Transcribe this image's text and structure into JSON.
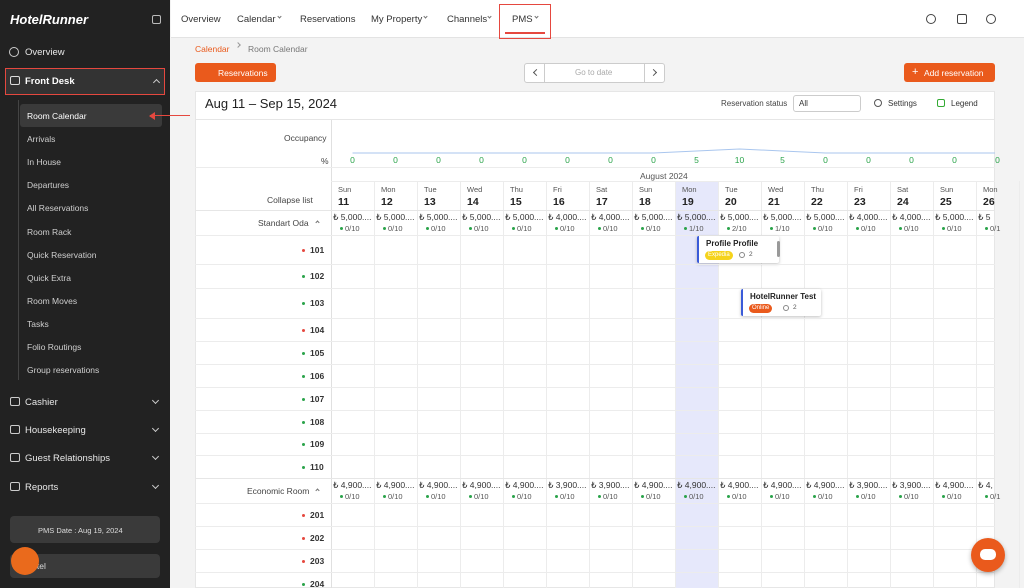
{
  "sidebar": {
    "logo": "HotelRunner",
    "overview": "Overview",
    "front_desk": "Front Desk",
    "front_desk_items": [
      "Room Calendar",
      "Arrivals",
      "In House",
      "Departures",
      "All Reservations",
      "Room Rack",
      "Quick Reservation",
      "Quick Extra",
      "Room Moves",
      "Tasks",
      "Folio Routings",
      "Group reservations"
    ],
    "sections": [
      "Cashier",
      "Housekeeping",
      "Guest Relationships",
      "Reports"
    ],
    "pms_date": "PMS Date : Aug 19, 2024",
    "hotel": "Hotel"
  },
  "topnav": [
    "Overview",
    "Calendar",
    "Reservations",
    "My Property",
    "Channels",
    "PMS"
  ],
  "breadcrumb": [
    "Calendar",
    "Room Calendar"
  ],
  "toolbar": {
    "reservations": "Reservations",
    "go_to_date": "Go to date",
    "add_reservation": "Add reservation"
  },
  "calendar": {
    "range": "Aug 11 – Sep 15, 2024",
    "status_label": "Reservation status",
    "status_value": "All",
    "settings": "Settings",
    "legend": "Legend",
    "occupancy_label": "Occupancy",
    "percent_label": "%",
    "occupancy": [
      0,
      0,
      0,
      0,
      0,
      0,
      0,
      0,
      5,
      10,
      5,
      0,
      0,
      0,
      0,
      0
    ],
    "month": "August 2024",
    "collapse": "Collapse list",
    "days": [
      {
        "dow": "Sun",
        "day": 11
      },
      {
        "dow": "Mon",
        "day": 12
      },
      {
        "dow": "Tue",
        "day": 13
      },
      {
        "dow": "Wed",
        "day": 14
      },
      {
        "dow": "Thu",
        "day": 15
      },
      {
        "dow": "Fri",
        "day": 16
      },
      {
        "dow": "Sat",
        "day": 17
      },
      {
        "dow": "Sun",
        "day": 18
      },
      {
        "dow": "Mon",
        "day": 19
      },
      {
        "dow": "Tue",
        "day": 20
      },
      {
        "dow": "Wed",
        "day": 21
      },
      {
        "dow": "Thu",
        "day": 22
      },
      {
        "dow": "Fri",
        "day": 23
      },
      {
        "dow": "Sat",
        "day": 24
      },
      {
        "dow": "Sun",
        "day": 25
      },
      {
        "dow": "Mon",
        "day": 26
      }
    ],
    "room_types": [
      {
        "name": "Standart Oda",
        "prices": [
          "₺ 5,000....",
          "₺ 5,000....",
          "₺ 5,000....",
          "₺ 5,000....",
          "₺ 5,000....",
          "₺ 4,000....",
          "₺ 4,000....",
          "₺ 5,000....",
          "₺ 5,000....",
          "₺ 5,000....",
          "₺ 5,000....",
          "₺ 5,000....",
          "₺ 4,000....",
          "₺ 4,000....",
          "₺ 5,000....",
          "₺ 5"
        ],
        "availability": [
          "0/10",
          "0/10",
          "0/10",
          "0/10",
          "0/10",
          "0/10",
          "0/10",
          "0/10",
          "1/10",
          "2/10",
          "1/10",
          "0/10",
          "0/10",
          "0/10",
          "0/10",
          "0/1"
        ],
        "rooms": [
          {
            "number": 101,
            "color": "#e5483f",
            "reservation": {
              "guest": "Profile Profile",
              "source": "Expedia",
              "source_color": "#f5d31c",
              "guests": 2
            }
          },
          {
            "number": 102,
            "color": "#2aa34a"
          },
          {
            "number": 103,
            "color": "#2aa34a",
            "reservation": {
              "guest": "HotelRunner Test",
              "source": "Online",
              "source_color": "#ea5a1c",
              "guests": 2
            }
          },
          {
            "number": 104,
            "color": "#e5483f"
          },
          {
            "number": 105,
            "color": "#2aa34a"
          },
          {
            "number": 106,
            "color": "#2aa34a"
          },
          {
            "number": 107,
            "color": "#2aa34a"
          },
          {
            "number": 108,
            "color": "#2aa34a"
          },
          {
            "number": 109,
            "color": "#2aa34a"
          },
          {
            "number": 110,
            "color": "#2aa34a"
          }
        ]
      },
      {
        "name": "Economic Room",
        "prices": [
          "₺ 4,900....",
          "₺ 4,900....",
          "₺ 4,900....",
          "₺ 4,900....",
          "₺ 4,900....",
          "₺ 3,900....",
          "₺ 3,900....",
          "₺ 4,900....",
          "₺ 4,900....",
          "₺ 4,900....",
          "₺ 4,900....",
          "₺ 4,900....",
          "₺ 3,900....",
          "₺ 3,900....",
          "₺ 4,900....",
          "₺ 4,"
        ],
        "availability": [
          "0/10",
          "0/10",
          "0/10",
          "0/10",
          "0/10",
          "0/10",
          "0/10",
          "0/10",
          "0/10",
          "0/10",
          "0/10",
          "0/10",
          "0/10",
          "0/10",
          "0/10",
          "0/1"
        ],
        "rooms": [
          {
            "number": 201,
            "color": "#e5483f"
          },
          {
            "number": 202,
            "color": "#e5483f"
          },
          {
            "number": 203,
            "color": "#e5483f"
          },
          {
            "number": 204,
            "color": "#2aa34a"
          }
        ]
      }
    ]
  }
}
